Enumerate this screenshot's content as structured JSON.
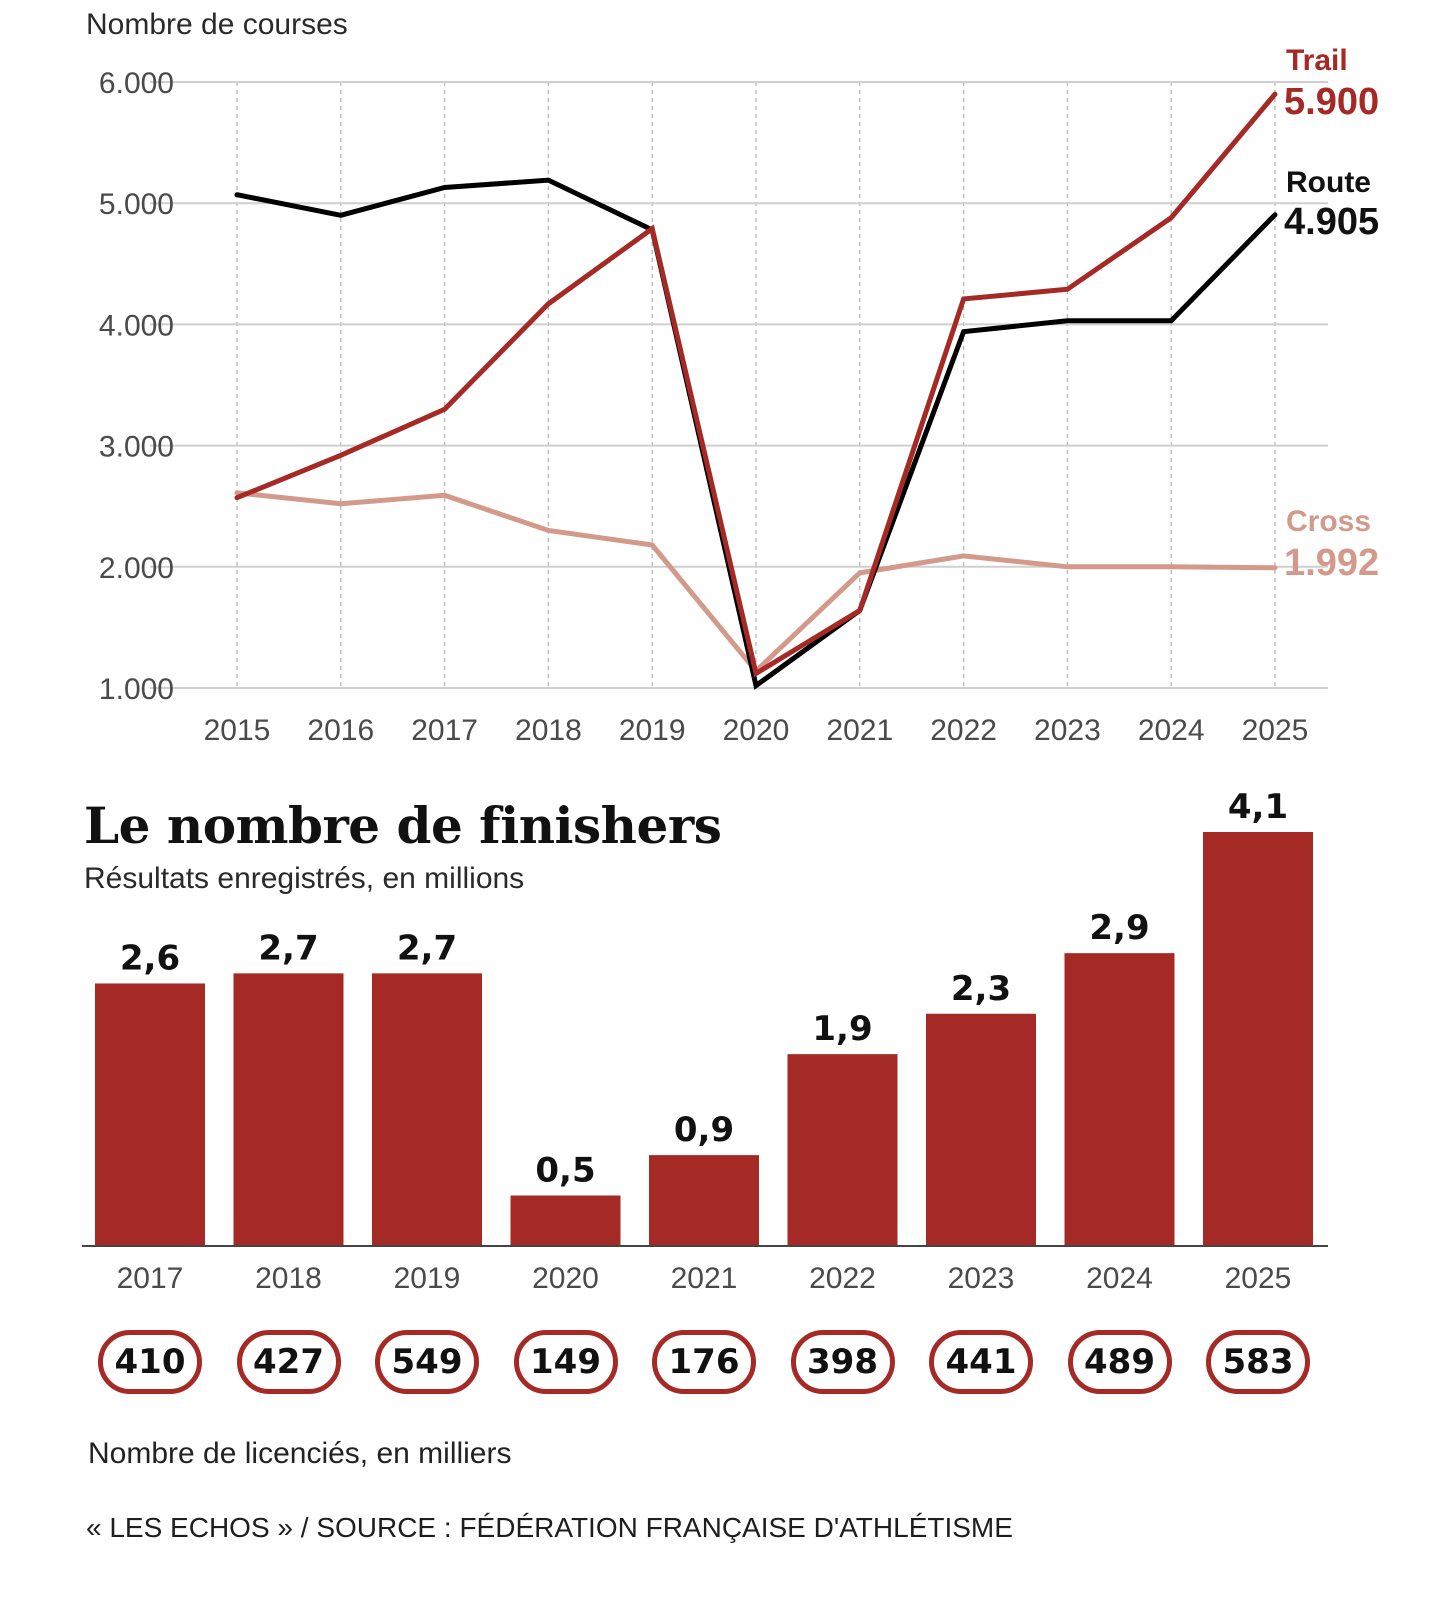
{
  "chart_data": [
    {
      "type": "line",
      "title": "Nombre de courses",
      "ylabel": "Nombre de courses",
      "xlabel": "",
      "x": [
        "2015",
        "2016",
        "2017",
        "2018",
        "2019",
        "2020",
        "2021",
        "2022",
        "2023",
        "2024",
        "2025"
      ],
      "ylim": [
        1000,
        6000
      ],
      "yticks": [
        1000,
        2000,
        3000,
        4000,
        5000,
        6000
      ],
      "ytick_labels": [
        "1.000",
        "2.000",
        "3.000",
        "4.000",
        "5.000",
        "6.000"
      ],
      "grid": "horizontal solid, vertical dotted",
      "legend": "end-of-line labels at right",
      "series": [
        {
          "name": "Trail",
          "color": "#a52a25",
          "end_label": "5.900",
          "values": [
            2570,
            2920,
            3300,
            4170,
            4790,
            1120,
            1640,
            4210,
            4290,
            4880,
            5900
          ]
        },
        {
          "name": "Route",
          "color": "#000000",
          "end_label": "4.905",
          "values": [
            5070,
            4900,
            5130,
            5190,
            4780,
            1020,
            1640,
            3940,
            4030,
            4030,
            4905
          ]
        },
        {
          "name": "Cross",
          "color": "#d3998a",
          "end_label": "1.992",
          "values": [
            2610,
            2520,
            2590,
            2300,
            2180,
            1140,
            1950,
            2090,
            2000,
            2000,
            1992
          ]
        }
      ]
    },
    {
      "type": "bar",
      "title": "Le nombre de finishers",
      "subtitle": "Résultats enregistrés, en millions",
      "categories": [
        "2017",
        "2018",
        "2019",
        "2020",
        "2021",
        "2022",
        "2023",
        "2024",
        "2025"
      ],
      "values": [
        2.6,
        2.7,
        2.7,
        0.5,
        0.9,
        1.9,
        2.3,
        2.9,
        4.1
      ],
      "value_labels": [
        "2,6",
        "2,7",
        "2,7",
        "0,5",
        "0,9",
        "1,9",
        "2,3",
        "2,9",
        "4,1"
      ],
      "ylim": [
        0,
        4.1
      ],
      "color": "#a52a25",
      "xlabel": "",
      "ylabel": "",
      "secondary": {
        "label": "Nombre de licenciés, en milliers",
        "values": [
          410,
          427,
          549,
          149,
          176,
          398,
          441,
          489,
          583
        ],
        "value_labels": [
          "410",
          "427",
          "549",
          "149",
          "176",
          "398",
          "441",
          "489",
          "583"
        ]
      }
    }
  ],
  "labels": {
    "line_ylabel": "Nombre de courses",
    "bar_title": "Le nombre de finishers",
    "bar_subtitle": "Résultats enregistrés, en millions",
    "licencies_label": "Nombre de licenciés, en milliers",
    "source": "« LES ECHOS » / SOURCE : FÉDÉRATION FRANÇAISE D'ATHLÉTISME"
  }
}
